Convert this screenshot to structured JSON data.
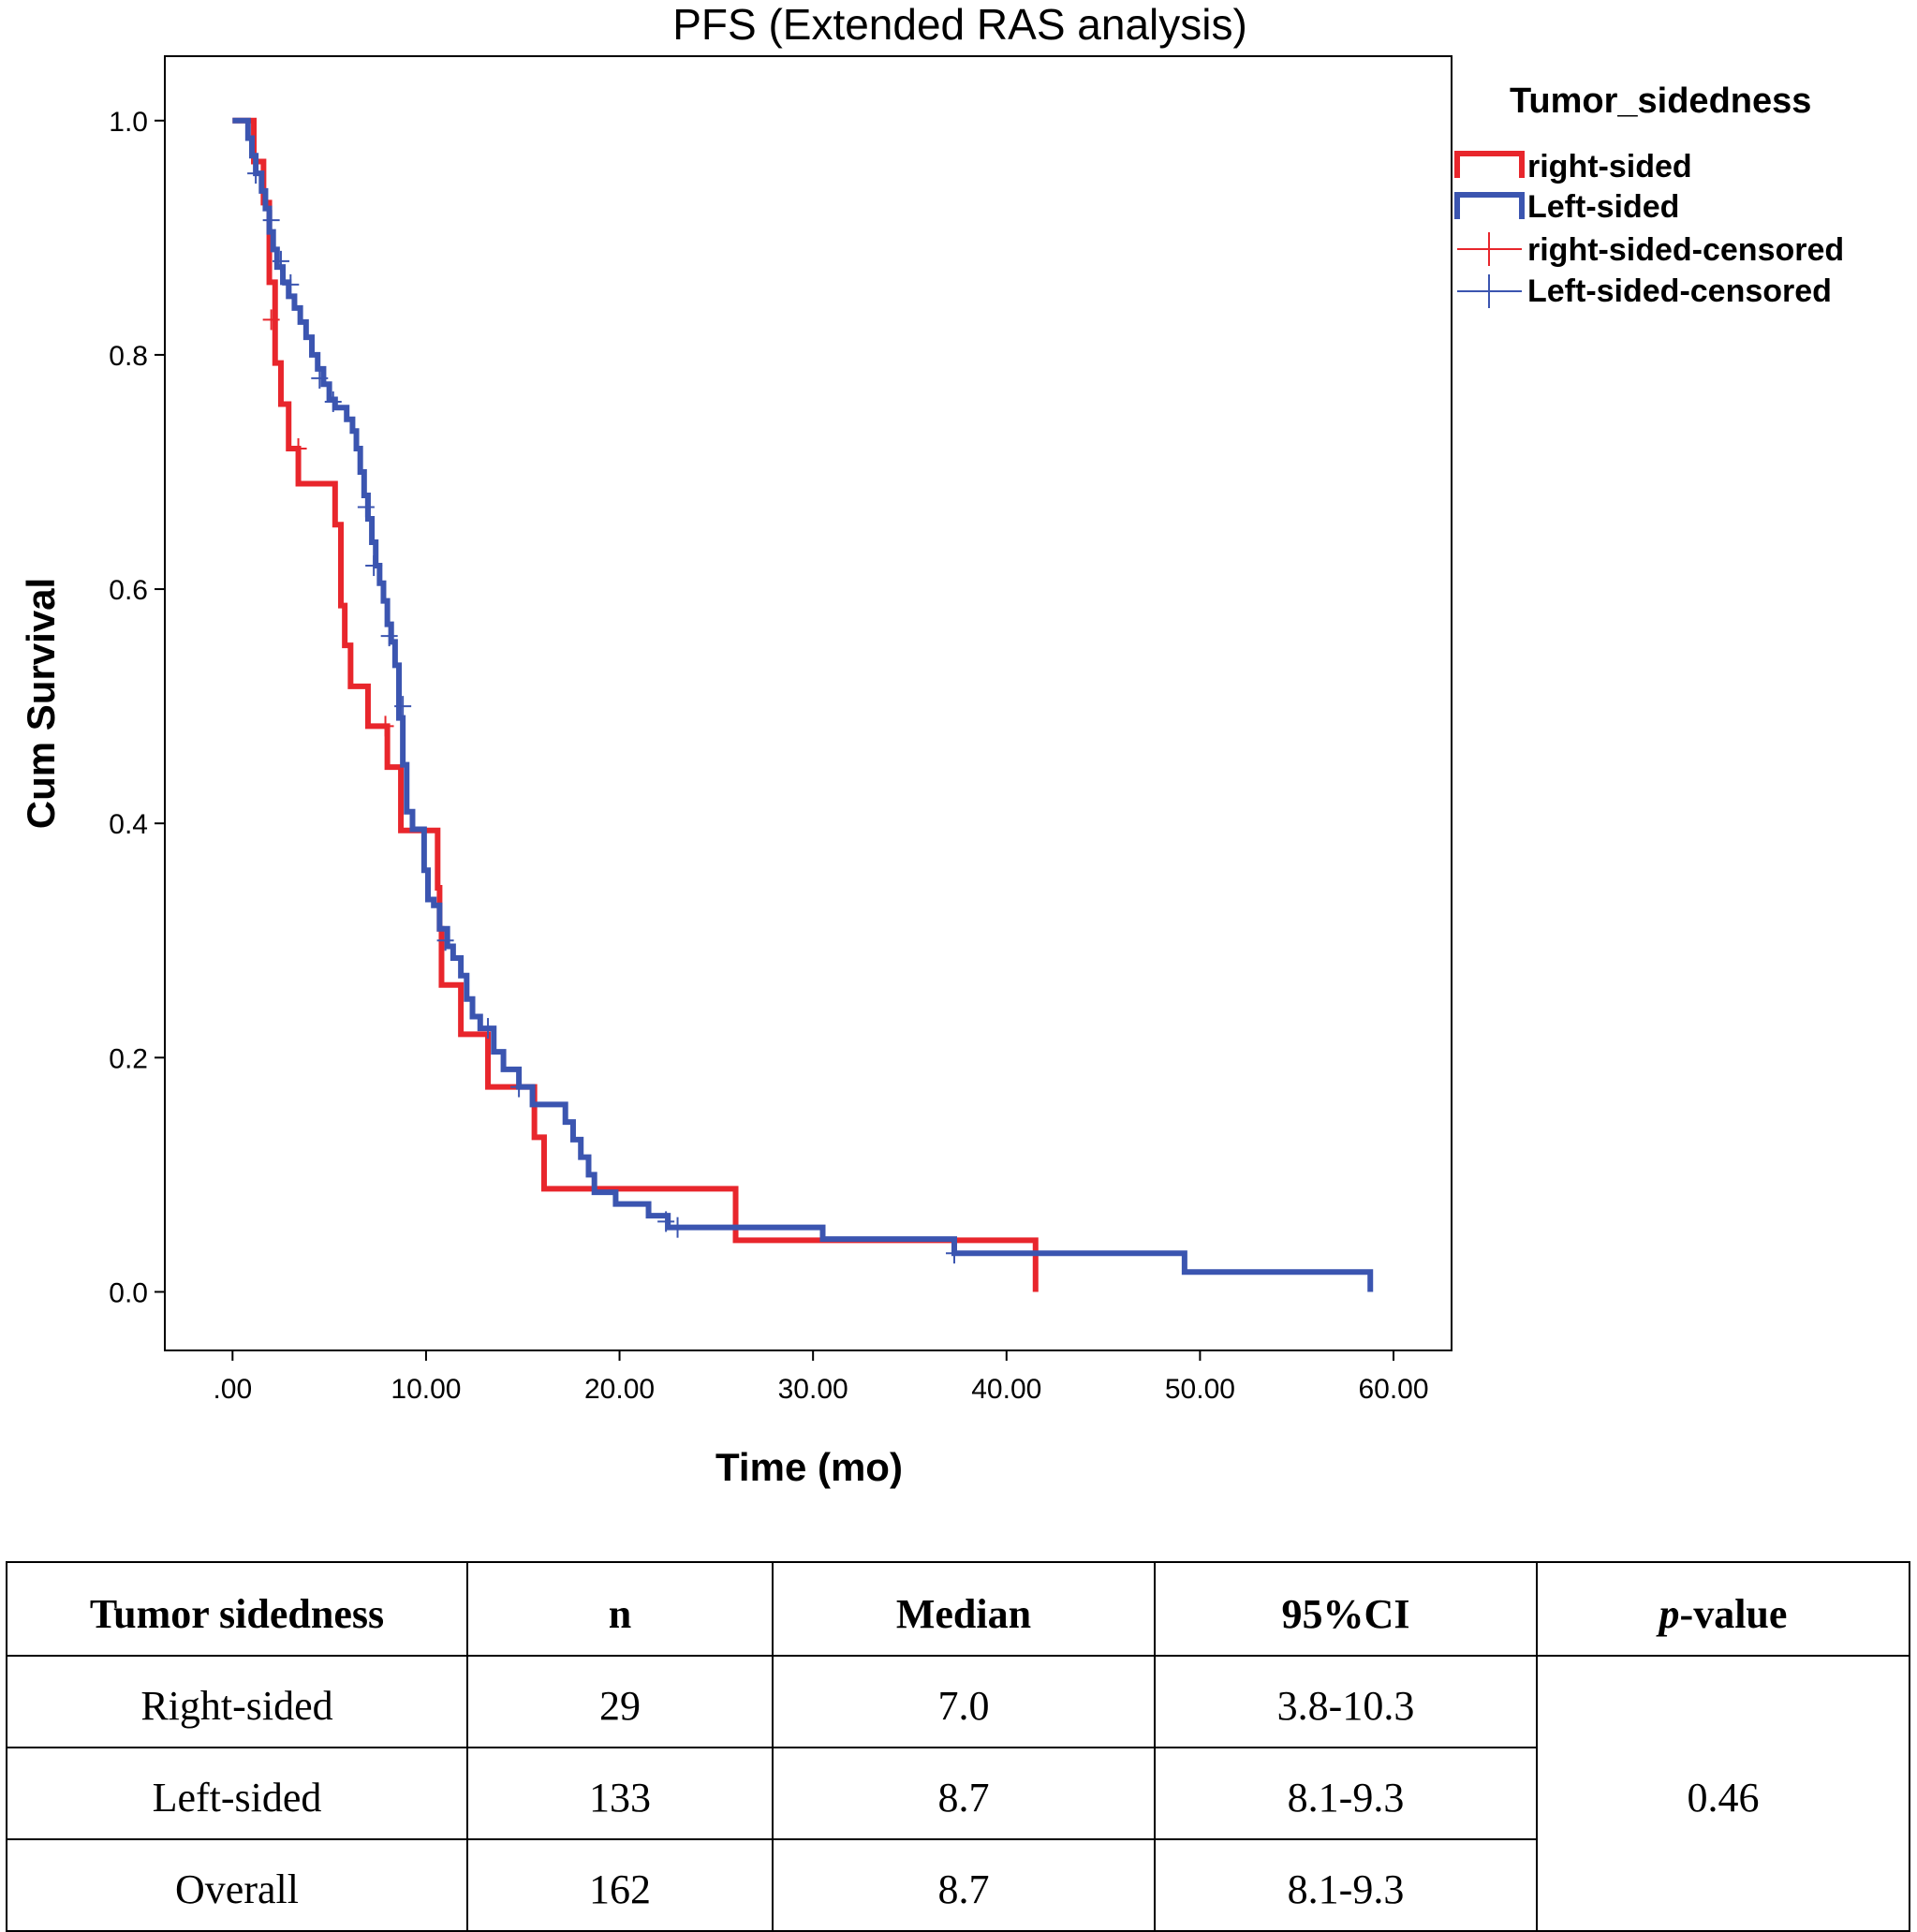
{
  "chart_data": {
    "type": "line",
    "subtype": "kaplan-meier",
    "title": "PFS (Extended RAS analysis)",
    "xlabel": "Time (mo)",
    "ylabel": "Cum Survival",
    "xlim": [
      -3.5,
      63
    ],
    "ylim": [
      -0.05,
      1.055
    ],
    "xticks": [
      0,
      10,
      20,
      30,
      40,
      50,
      60
    ],
    "xtick_labels": [
      ".00",
      "10.00",
      "20.00",
      "30.00",
      "40.00",
      "50.00",
      "60.00"
    ],
    "yticks": [
      0,
      0.2,
      0.4,
      0.6,
      0.8,
      1.0
    ],
    "ytick_labels": [
      "0.0",
      "0.2",
      "0.4",
      "0.6",
      "0.8",
      "1.0"
    ],
    "grid": false,
    "legend": {
      "title": "Tumor_sidedness",
      "position": "top-right-outside",
      "entries": [
        "right-sided",
        "Left-sided",
        "right-sided-censored",
        "Left-sided-censored"
      ]
    },
    "series": [
      {
        "name": "right-sided",
        "color": "#e8262c",
        "steps": [
          [
            0,
            1.0
          ],
          [
            1.1,
            0.965
          ],
          [
            1.6,
            0.93
          ],
          [
            1.9,
            0.862
          ],
          [
            2.2,
            0.793
          ],
          [
            2.5,
            0.758
          ],
          [
            2.9,
            0.72
          ],
          [
            3.4,
            0.69
          ],
          [
            5.3,
            0.655
          ],
          [
            5.6,
            0.586
          ],
          [
            5.8,
            0.552
          ],
          [
            6.1,
            0.517
          ],
          [
            7.0,
            0.483
          ],
          [
            8.0,
            0.448
          ],
          [
            8.7,
            0.394
          ],
          [
            10.6,
            0.345
          ],
          [
            10.7,
            0.31
          ],
          [
            10.8,
            0.262
          ],
          [
            11.8,
            0.22
          ],
          [
            13.2,
            0.175
          ],
          [
            15.6,
            0.132
          ],
          [
            16.1,
            0.088
          ],
          [
            26.0,
            0.044
          ],
          [
            41.5,
            0.0
          ]
        ],
        "end": 41.5,
        "censored": [
          [
            2.0,
            0.83
          ],
          [
            3.4,
            0.72
          ],
          [
            7.9,
            0.483
          ]
        ]
      },
      {
        "name": "Left-sided",
        "color": "#3b55b0",
        "steps": [
          [
            0,
            1.0
          ],
          [
            0.8,
            0.985
          ],
          [
            1.0,
            0.97
          ],
          [
            1.2,
            0.955
          ],
          [
            1.5,
            0.94
          ],
          [
            1.7,
            0.925
          ],
          [
            1.9,
            0.905
          ],
          [
            2.1,
            0.89
          ],
          [
            2.3,
            0.875
          ],
          [
            2.6,
            0.862
          ],
          [
            2.9,
            0.85
          ],
          [
            3.2,
            0.84
          ],
          [
            3.5,
            0.828
          ],
          [
            3.8,
            0.815
          ],
          [
            4.1,
            0.8
          ],
          [
            4.4,
            0.788
          ],
          [
            4.7,
            0.775
          ],
          [
            5.0,
            0.762
          ],
          [
            5.3,
            0.755
          ],
          [
            5.9,
            0.745
          ],
          [
            6.2,
            0.735
          ],
          [
            6.4,
            0.72
          ],
          [
            6.6,
            0.7
          ],
          [
            6.8,
            0.68
          ],
          [
            7.0,
            0.66
          ],
          [
            7.2,
            0.64
          ],
          [
            7.4,
            0.62
          ],
          [
            7.6,
            0.605
          ],
          [
            7.8,
            0.59
          ],
          [
            8.0,
            0.57
          ],
          [
            8.2,
            0.555
          ],
          [
            8.4,
            0.535
          ],
          [
            8.6,
            0.49
          ],
          [
            8.8,
            0.45
          ],
          [
            9.0,
            0.41
          ],
          [
            9.3,
            0.395
          ],
          [
            9.9,
            0.36
          ],
          [
            10.1,
            0.335
          ],
          [
            10.4,
            0.33
          ],
          [
            10.7,
            0.31
          ],
          [
            11.1,
            0.295
          ],
          [
            11.4,
            0.285
          ],
          [
            11.8,
            0.27
          ],
          [
            12.1,
            0.25
          ],
          [
            12.4,
            0.235
          ],
          [
            12.8,
            0.225
          ],
          [
            13.5,
            0.205
          ],
          [
            14.0,
            0.19
          ],
          [
            14.8,
            0.175
          ],
          [
            15.5,
            0.16
          ],
          [
            17.2,
            0.145
          ],
          [
            17.6,
            0.13
          ],
          [
            18.0,
            0.115
          ],
          [
            18.4,
            0.1
          ],
          [
            18.7,
            0.085
          ],
          [
            19.8,
            0.075
          ],
          [
            21.5,
            0.065
          ],
          [
            22.5,
            0.055
          ],
          [
            30.5,
            0.045
          ],
          [
            37.3,
            0.033
          ],
          [
            49.2,
            0.017
          ],
          [
            58.8,
            0.0
          ]
        ],
        "end": 58.8,
        "censored": [
          [
            1.2,
            0.955
          ],
          [
            2.0,
            0.915
          ],
          [
            2.5,
            0.88
          ],
          [
            3.0,
            0.86
          ],
          [
            4.5,
            0.78
          ],
          [
            5.2,
            0.76
          ],
          [
            6.9,
            0.67
          ],
          [
            7.3,
            0.62
          ],
          [
            8.1,
            0.56
          ],
          [
            8.8,
            0.5
          ],
          [
            11.0,
            0.3
          ],
          [
            13.2,
            0.225
          ],
          [
            14.8,
            0.175
          ],
          [
            22.4,
            0.06
          ],
          [
            23.0,
            0.055
          ],
          [
            37.3,
            0.033
          ]
        ]
      }
    ]
  },
  "stats_table": {
    "headers": [
      "Tumor sidedness",
      "n",
      "Median",
      "95%CI"
    ],
    "pvalue_header_italic": "p",
    "pvalue_header_rest": "-value",
    "rows": [
      {
        "group": "Right-sided",
        "n": "29",
        "median": "7.0",
        "ci": "3.8-10.3"
      },
      {
        "group": "Left-sided",
        "n": "133",
        "median": "8.7",
        "ci": "8.1-9.3"
      },
      {
        "group": "Overall",
        "n": "162",
        "median": "8.7",
        "ci": "8.1-9.3"
      }
    ],
    "pvalue": "0.46"
  }
}
